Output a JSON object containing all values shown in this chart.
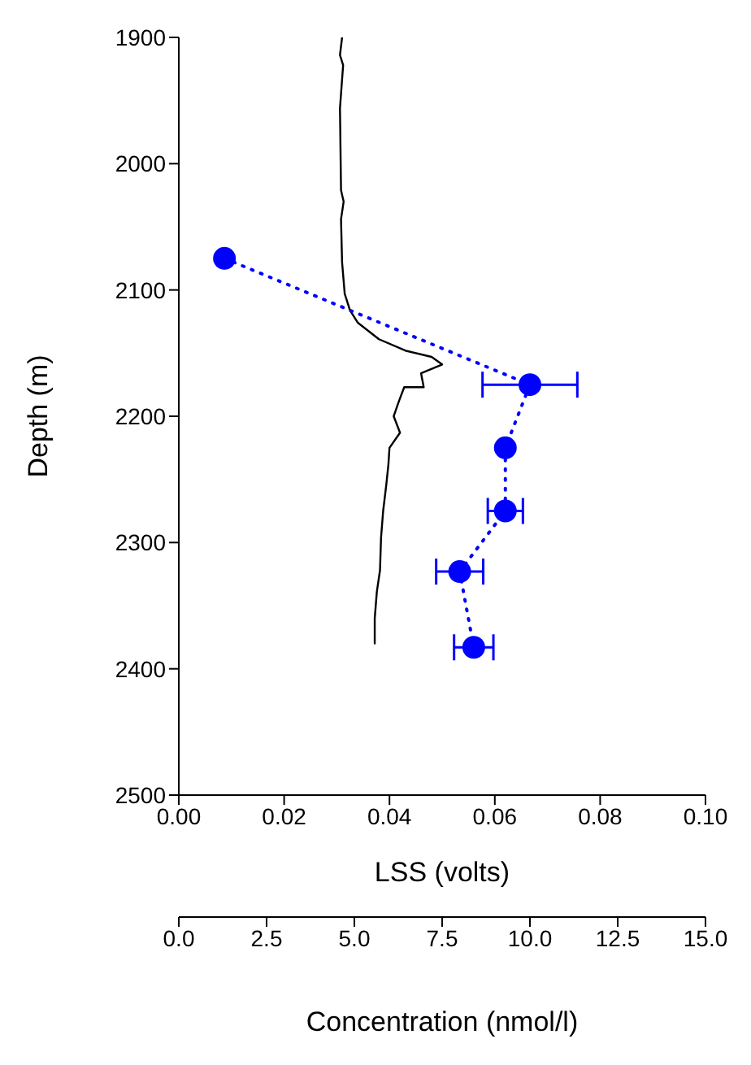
{
  "chart_data": {
    "type": "line",
    "xlabel": "LSS (volts)",
    "ylabel": "Depth (m)",
    "x2label": "Concentration (nmol/l)",
    "xlim": [
      0,
      0.1
    ],
    "xticks": [
      {
        "value": 0,
        "label": "0.00"
      },
      0.02,
      0.04,
      0.06,
      0.08,
      {
        "value": 0.1,
        "label": "0.10"
      }
    ],
    "x2lim": [
      0,
      15
    ],
    "x2ticks": [
      {
        "value": 0,
        "label": "0.0"
      },
      2.5,
      {
        "value": 5,
        "label": "5.0"
      },
      7.5,
      {
        "value": 10,
        "label": "10.0"
      },
      12.5,
      {
        "value": 15,
        "label": "15.0"
      }
    ],
    "ylim": [
      2500,
      1900
    ],
    "yticks": [
      1900,
      2000,
      2100,
      2200,
      2300,
      2400,
      2500
    ],
    "series": [
      {
        "color": "#000000",
        "marker": "none",
        "line_style": "solid",
        "x": [
          0.031,
          0.0306,
          0.0312,
          0.0306,
          0.0308,
          0.0313,
          0.0308,
          0.031,
          0.0315,
          0.0325,
          0.034,
          0.038,
          0.043,
          0.048,
          0.05,
          0.046,
          0.0465,
          0.0428,
          0.0418,
          0.0408,
          0.042,
          0.04,
          0.0398,
          0.0394,
          0.0388,
          0.0384,
          0.0382,
          0.0376,
          0.0372,
          0.0372
        ],
        "values": [
          1900,
          1914,
          1922,
          1956,
          2021,
          2030,
          2044,
          2078,
          2103,
          2116,
          2126,
          2139,
          2148,
          2153,
          2159,
          2166,
          2177,
          2177,
          2188,
          2200,
          2213,
          2225,
          2238,
          2254,
          2275,
          2296,
          2322,
          2339,
          2360,
          2380
        ]
      },
      {
        "axis": "x2",
        "color": "#0000ff",
        "marker": "circle",
        "line_style": "dotted",
        "x": [
          1.3,
          10.0,
          9.3,
          9.3,
          8.0,
          8.4
        ],
        "values": [
          2075,
          2175,
          2225,
          2275,
          2323,
          2383
        ],
        "xerrors": [
          null,
          1.35,
          null,
          0.5,
          0.67,
          0.56
        ]
      }
    ]
  }
}
